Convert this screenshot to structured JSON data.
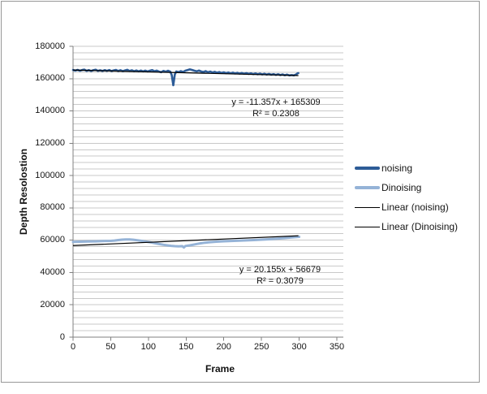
{
  "frame": {
    "border_color": "#979797",
    "background": "#ffffff"
  },
  "chart_data": {
    "type": "line",
    "title": "",
    "xlabel": "Frame",
    "ylabel": "Depth Resolostion",
    "xlim": [
      0,
      358
    ],
    "ylim": [
      0,
      180000
    ],
    "x_ticks": [
      0,
      50,
      100,
      150,
      200,
      250,
      300,
      350
    ],
    "y_ticks": [
      0,
      20000,
      40000,
      60000,
      80000,
      100000,
      120000,
      140000,
      160000,
      180000
    ],
    "y_minor_unit": 4000,
    "grid": "horizontal-minor-on",
    "legend_position": "right",
    "colors": {
      "gridline": "#c9c9c9",
      "axis": "#808080",
      "trendline": "#000000",
      "noising": "#2d5c97",
      "dinoising": "#95b3d7"
    },
    "series": [
      {
        "name": "noising",
        "color": "#2d5c97",
        "swatch": "thick",
        "stroke_width": 2.6,
        "points": [
          [
            0,
            165350
          ],
          [
            3,
            164950
          ],
          [
            6,
            165400
          ],
          [
            9,
            164850
          ],
          [
            12,
            165300
          ],
          [
            15,
            165550
          ],
          [
            18,
            164800
          ],
          [
            21,
            165250
          ],
          [
            24,
            164700
          ],
          [
            27,
            165200
          ],
          [
            30,
            165500
          ],
          [
            33,
            164750
          ],
          [
            36,
            165150
          ],
          [
            39,
            164700
          ],
          [
            42,
            165250
          ],
          [
            45,
            164800
          ],
          [
            48,
            165300
          ],
          [
            51,
            164650
          ],
          [
            54,
            165100
          ],
          [
            57,
            165400
          ],
          [
            60,
            164700
          ],
          [
            63,
            165200
          ],
          [
            66,
            164600
          ],
          [
            69,
            165100
          ],
          [
            72,
            165450
          ],
          [
            75,
            164700
          ],
          [
            78,
            165150
          ],
          [
            81,
            164550
          ],
          [
            84,
            165050
          ],
          [
            87,
            164500
          ],
          [
            90,
            165000
          ],
          [
            93,
            164450
          ],
          [
            96,
            164950
          ],
          [
            99,
            164400
          ],
          [
            102,
            164900
          ],
          [
            105,
            165250
          ],
          [
            108,
            164550
          ],
          [
            111,
            164950
          ],
          [
            114,
            164350
          ],
          [
            117,
            163950
          ],
          [
            120,
            164750
          ],
          [
            123,
            164300
          ],
          [
            126,
            164850
          ],
          [
            129,
            164300
          ],
          [
            131,
            162200
          ],
          [
            133,
            155900
          ],
          [
            135,
            162600
          ],
          [
            137,
            164400
          ],
          [
            140,
            164000
          ],
          [
            143,
            164600
          ],
          [
            146,
            164100
          ],
          [
            149,
            164900
          ],
          [
            152,
            165300
          ],
          [
            155,
            165700
          ],
          [
            158,
            165350
          ],
          [
            161,
            164900
          ],
          [
            164,
            164500
          ],
          [
            167,
            165000
          ],
          [
            170,
            164400
          ],
          [
            173,
            164100
          ],
          [
            176,
            164600
          ],
          [
            179,
            163950
          ],
          [
            182,
            164350
          ],
          [
            185,
            163800
          ],
          [
            188,
            164200
          ],
          [
            191,
            163650
          ],
          [
            194,
            164050
          ],
          [
            197,
            163500
          ],
          [
            200,
            163900
          ],
          [
            203,
            163400
          ],
          [
            206,
            163800
          ],
          [
            209,
            163300
          ],
          [
            212,
            163700
          ],
          [
            215,
            163200
          ],
          [
            218,
            163600
          ],
          [
            221,
            163100
          ],
          [
            224,
            163500
          ],
          [
            227,
            163000
          ],
          [
            230,
            163400
          ],
          [
            233,
            162900
          ],
          [
            236,
            163300
          ],
          [
            239,
            162800
          ],
          [
            242,
            163200
          ],
          [
            245,
            162700
          ],
          [
            248,
            163100
          ],
          [
            251,
            162600
          ],
          [
            254,
            163000
          ],
          [
            257,
            162500
          ],
          [
            260,
            162900
          ],
          [
            263,
            162400
          ],
          [
            266,
            162800
          ],
          [
            269,
            162300
          ],
          [
            272,
            162700
          ],
          [
            275,
            162200
          ],
          [
            278,
            162600
          ],
          [
            281,
            162100
          ],
          [
            284,
            162500
          ],
          [
            287,
            162000
          ],
          [
            290,
            162200
          ],
          [
            293,
            162000
          ],
          [
            296,
            162600
          ],
          [
            298,
            163300
          ],
          [
            299,
            163400
          ]
        ]
      },
      {
        "name": "Dinoising",
        "color": "#95b3d7",
        "swatch": "thick",
        "stroke_width": 3,
        "points": [
          [
            0,
            59000
          ],
          [
            10,
            59100
          ],
          [
            20,
            59200
          ],
          [
            30,
            59300
          ],
          [
            40,
            59450
          ],
          [
            50,
            59600
          ],
          [
            55,
            59800
          ],
          [
            60,
            60100
          ],
          [
            65,
            60350
          ],
          [
            70,
            60500
          ],
          [
            75,
            60500
          ],
          [
            80,
            60300
          ],
          [
            85,
            60000
          ],
          [
            90,
            59650
          ],
          [
            95,
            59300
          ],
          [
            100,
            58900
          ],
          [
            105,
            58450
          ],
          [
            110,
            58000
          ],
          [
            115,
            57550
          ],
          [
            120,
            57150
          ],
          [
            125,
            56800
          ],
          [
            130,
            56500
          ],
          [
            135,
            56300
          ],
          [
            140,
            56200
          ],
          [
            145,
            56300
          ],
          [
            147,
            55500
          ],
          [
            149,
            56400
          ],
          [
            155,
            56800
          ],
          [
            160,
            57250
          ],
          [
            165,
            57700
          ],
          [
            170,
            58100
          ],
          [
            175,
            58450
          ],
          [
            180,
            58700
          ],
          [
            185,
            58900
          ],
          [
            190,
            59100
          ],
          [
            195,
            59250
          ],
          [
            200,
            59350
          ],
          [
            210,
            59550
          ],
          [
            220,
            59700
          ],
          [
            230,
            59900
          ],
          [
            240,
            60100
          ],
          [
            250,
            60350
          ],
          [
            260,
            60600
          ],
          [
            270,
            60950
          ],
          [
            280,
            61300
          ],
          [
            290,
            61700
          ],
          [
            300,
            62100
          ]
        ]
      },
      {
        "name": "Linear (noising)",
        "color": "#000000",
        "swatch": "thin",
        "stroke_width": 1.2,
        "trendline": {
          "slope": -11.357,
          "intercept": 165309,
          "x_range": [
            0,
            299
          ]
        }
      },
      {
        "name": "Linear (Dinoising)",
        "color": "#000000",
        "swatch": "thin",
        "stroke_width": 1.2,
        "trendline": {
          "slope": 20.155,
          "intercept": 56679,
          "x_range": [
            0,
            299
          ]
        }
      }
    ],
    "annotations": [
      {
        "line1": "y = -11.357x + 165309",
        "line2": "R² = 0.2308"
      },
      {
        "line1": "y = 20.155x + 56679",
        "line2": "R² = 0.3079"
      }
    ]
  }
}
